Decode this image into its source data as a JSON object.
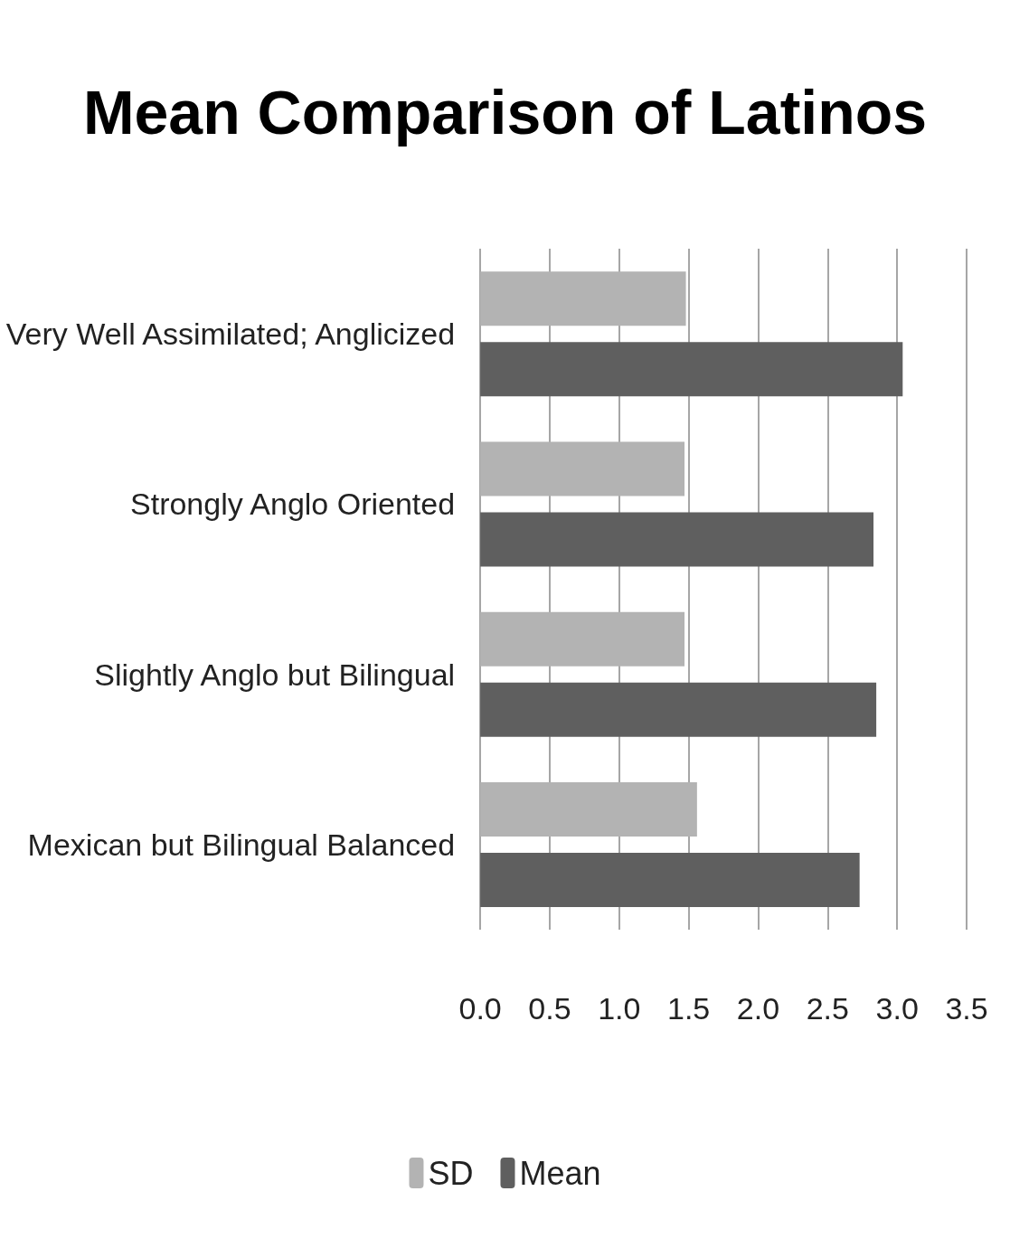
{
  "chart_data": {
    "type": "bar",
    "orientation": "horizontal",
    "title": "Mean Comparison of Latinos",
    "categories": [
      "Very Well Assimilated; Anglicized",
      "Strongly Anglo Oriented",
      "Slightly Anglo but Bilingual",
      "Mexican but Bilingual Balanced"
    ],
    "series": [
      {
        "name": "SD",
        "color": "#b3b3b3",
        "values": [
          1.48,
          1.47,
          1.47,
          1.56
        ]
      },
      {
        "name": "Mean",
        "color": "#5f5f5f",
        "values": [
          3.04,
          2.83,
          2.85,
          2.73
        ]
      }
    ],
    "xlim": [
      0,
      3.5
    ],
    "xticks": [
      {
        "value": 0,
        "label": "0.0"
      },
      {
        "value": 0.5,
        "label": "0.5"
      },
      {
        "value": 1,
        "label": "1.0"
      },
      {
        "value": 1.5,
        "label": "1.5"
      },
      {
        "value": 2,
        "label": "2.0"
      },
      {
        "value": 2.5,
        "label": "2.5"
      },
      {
        "value": 3,
        "label": "3.0"
      },
      {
        "value": 3.5,
        "label": "3.5"
      }
    ],
    "grid": "x",
    "legend": "bottom"
  }
}
